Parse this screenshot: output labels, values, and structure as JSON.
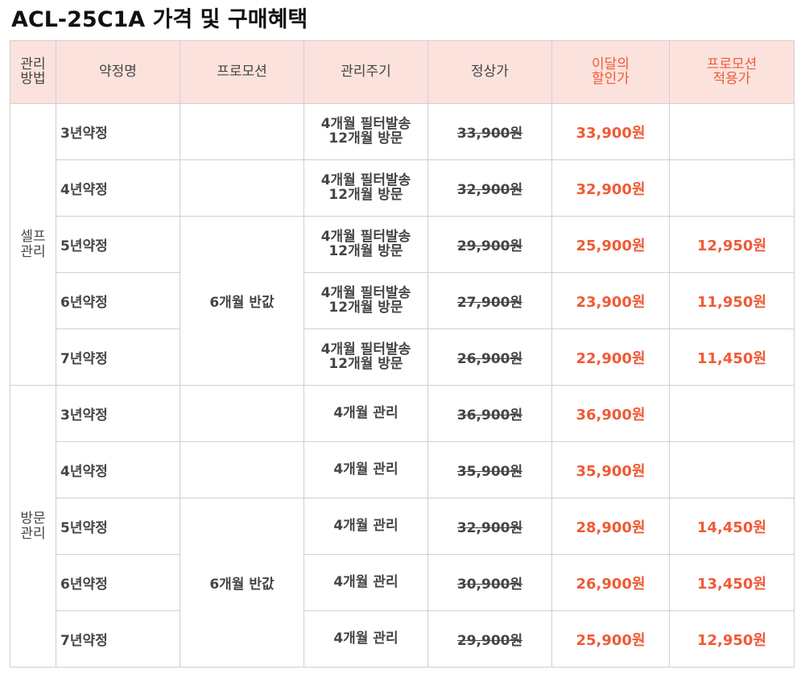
{
  "title": "ACL-25C1A 가격 및 구매혜택",
  "headers": {
    "method": [
      "관리",
      "방법"
    ],
    "plan": "약정명",
    "promotion": "프로모션",
    "cycle": "관리주기",
    "regular_price": "정상가",
    "discount_price": [
      "이달의",
      "할인가"
    ],
    "promo_price": [
      "프로모션",
      "적용가"
    ]
  },
  "groups": [
    {
      "name": [
        "셀프",
        "관리"
      ],
      "promo_label": "6개월 반값",
      "rows": [
        {
          "plan": "3년약정",
          "cycle": [
            "4개월 필터발송",
            "12개월 방문"
          ],
          "regular": "33,900원",
          "discount": "33,900원",
          "promo": ""
        },
        {
          "plan": "4년약정",
          "cycle": [
            "4개월 필터발송",
            "12개월 방문"
          ],
          "regular": "32,900원",
          "discount": "32,900원",
          "promo": ""
        },
        {
          "plan": "5년약정",
          "cycle": [
            "4개월 필터발송",
            "12개월 방문"
          ],
          "regular": "29,900원",
          "discount": "25,900원",
          "promo": "12,950원"
        },
        {
          "plan": "6년약정",
          "cycle": [
            "4개월 필터발송",
            "12개월 방문"
          ],
          "regular": "27,900원",
          "discount": "23,900원",
          "promo": "11,950원"
        },
        {
          "plan": "7년약정",
          "cycle": [
            "4개월 필터발송",
            "12개월 방문"
          ],
          "regular": "26,900원",
          "discount": "22,900원",
          "promo": "11,450원"
        }
      ]
    },
    {
      "name": [
        "방문",
        "관리"
      ],
      "promo_label": "6개월 반값",
      "rows": [
        {
          "plan": "3년약정",
          "cycle": [
            "4개월 관리"
          ],
          "regular": "36,900원",
          "discount": "36,900원",
          "promo": ""
        },
        {
          "plan": "4년약정",
          "cycle": [
            "4개월 관리"
          ],
          "regular": "35,900원",
          "discount": "35,900원",
          "promo": ""
        },
        {
          "plan": "5년약정",
          "cycle": [
            "4개월 관리"
          ],
          "regular": "32,900원",
          "discount": "28,900원",
          "promo": "14,450원"
        },
        {
          "plan": "6년약정",
          "cycle": [
            "4개월 관리"
          ],
          "regular": "30,900원",
          "discount": "26,900원",
          "promo": "13,450원"
        },
        {
          "plan": "7년약정",
          "cycle": [
            "4개월 관리"
          ],
          "regular": "29,900원",
          "discount": "25,900원",
          "promo": "12,950원"
        }
      ]
    }
  ]
}
